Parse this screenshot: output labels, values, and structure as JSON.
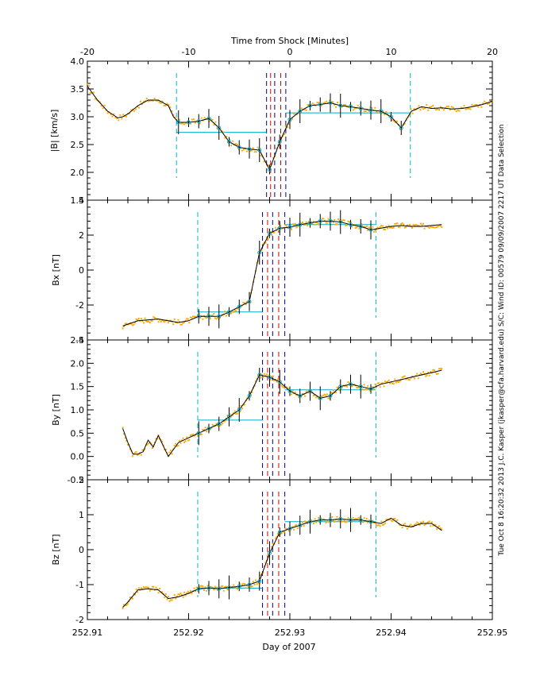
{
  "top_axis": {
    "label": "Time from Shock [Minutes]",
    "range": [
      -20,
      20
    ],
    "ticks": [
      "-20",
      "-10",
      "0",
      "10",
      "20"
    ]
  },
  "bottom_axis": {
    "label": "Day of 2007",
    "range": [
      252.91,
      252.95
    ],
    "ticks": [
      "252.91",
      "252.92",
      "252.93",
      "252.94",
      "252.95"
    ]
  },
  "side_text": "Tue Oct  8 16:20:32 2013    J.C. Kasper (jkasper@cfa.harvard.edu)    S/C: Wind ID: 00579 09/09/2007    2217 UT Data Selection",
  "colors": {
    "data_points": "#ffaa00",
    "fit_line": "#000000",
    "window_lines": "#00bbcc",
    "mean_lines": "#00aacc",
    "shock_lines": "#cc0000",
    "shock_lines_alt": "#000099"
  },
  "chart_data": [
    {
      "type": "line",
      "ylabel": "|B| [km/s]",
      "ylim": [
        1.5,
        4.0
      ],
      "yticks": [
        "1.5",
        "2.0",
        "2.5",
        "3.0",
        "3.5",
        "4.0"
      ],
      "x": [
        252.91,
        252.911,
        252.912,
        252.913,
        252.9135,
        252.914,
        252.915,
        252.916,
        252.917,
        252.918,
        252.9185,
        252.919,
        252.92,
        252.921,
        252.922,
        252.923,
        252.924,
        252.925,
        252.926,
        252.927,
        252.928,
        252.929,
        252.93,
        252.931,
        252.932,
        252.933,
        252.934,
        252.935,
        252.936,
        252.937,
        252.938,
        252.939,
        252.94,
        252.941,
        252.942,
        252.943,
        252.944,
        252.945,
        252.946,
        252.947,
        252.948,
        252.949,
        252.95
      ],
      "values": [
        3.55,
        3.3,
        3.1,
        2.98,
        3.0,
        3.05,
        3.2,
        3.3,
        3.3,
        3.2,
        3.0,
        2.9,
        2.9,
        2.92,
        2.97,
        2.8,
        2.55,
        2.45,
        2.42,
        2.4,
        2.05,
        2.55,
        2.95,
        3.1,
        3.2,
        3.22,
        3.25,
        3.2,
        3.18,
        3.15,
        3.12,
        3.1,
        3.0,
        2.8,
        3.1,
        3.18,
        3.15,
        3.16,
        3.14,
        3.15,
        3.18,
        3.22,
        3.28
      ],
      "window": [
        252.9188,
        252.9419
      ],
      "mean_up": {
        "x": [
          252.9188,
          252.9277
        ],
        "value": 2.72
      },
      "mean_down": {
        "x": [
          252.9296,
          252.9419
        ],
        "value": 3.07
      },
      "shock_lines": [
        252.9277,
        252.9281,
        252.9285,
        252.9291,
        252.9296
      ]
    },
    {
      "type": "line",
      "ylabel": "Bx [nT]",
      "ylim": [
        -4,
        4
      ],
      "yticks": [
        "-4",
        "-2",
        "0",
        "2",
        "4"
      ],
      "x": [
        252.9135,
        252.915,
        252.917,
        252.919,
        252.92,
        252.921,
        252.922,
        252.923,
        252.924,
        252.925,
        252.926,
        252.927,
        252.928,
        252.929,
        252.93,
        252.931,
        252.932,
        252.933,
        252.934,
        252.935,
        252.936,
        252.937,
        252.938,
        252.939,
        252.94,
        252.941,
        252.942,
        252.943,
        252.944,
        252.945
      ],
      "values": [
        -3.2,
        -2.9,
        -2.8,
        -3.0,
        -2.9,
        -2.65,
        -2.65,
        -2.65,
        -2.4,
        -2.1,
        -1.8,
        1.0,
        2.1,
        2.4,
        2.45,
        2.6,
        2.7,
        2.8,
        2.8,
        2.75,
        2.6,
        2.5,
        2.3,
        2.4,
        2.5,
        2.55,
        2.5,
        2.5,
        2.55,
        2.6
      ],
      "window": [
        252.9209,
        252.9385
      ],
      "mean_up": {
        "x": [
          252.9209,
          252.9273
        ],
        "value": -2.4
      },
      "mean_down": {
        "x": [
          252.9295,
          252.9385
        ],
        "value": 2.6
      },
      "shock_lines": [
        252.9273,
        252.9278,
        252.9283,
        252.9289,
        252.9295
      ]
    },
    {
      "type": "line",
      "ylabel": "By [nT]",
      "ylim": [
        -0.5,
        2.5
      ],
      "yticks": [
        "-0.5",
        "0.0",
        "0.5",
        "1.0",
        "1.5",
        "2.0",
        "2.5"
      ],
      "x": [
        252.9135,
        252.914,
        252.9145,
        252.915,
        252.9155,
        252.916,
        252.9165,
        252.917,
        252.918,
        252.919,
        252.92,
        252.921,
        252.922,
        252.923,
        252.924,
        252.925,
        252.926,
        252.927,
        252.928,
        252.929,
        252.93,
        252.931,
        252.932,
        252.933,
        252.934,
        252.935,
        252.936,
        252.937,
        252.938,
        252.939,
        252.94,
        252.941,
        252.942,
        252.943,
        252.944,
        252.945
      ],
      "values": [
        0.6,
        0.3,
        0.05,
        0.05,
        0.1,
        0.35,
        0.2,
        0.45,
        0.0,
        0.3,
        0.4,
        0.5,
        0.6,
        0.7,
        0.85,
        1.0,
        1.3,
        1.75,
        1.7,
        1.6,
        1.4,
        1.3,
        1.4,
        1.25,
        1.3,
        1.5,
        1.55,
        1.5,
        1.45,
        1.55,
        1.6,
        1.65,
        1.7,
        1.75,
        1.8,
        1.85
      ],
      "window": [
        252.9209,
        252.9385
      ],
      "mean_up": {
        "x": [
          252.9209,
          252.9273
        ],
        "value": 0.78
      },
      "mean_down": {
        "x": [
          252.9295,
          252.9385
        ],
        "value": 1.43
      },
      "shock_lines": [
        252.9273,
        252.9278,
        252.9283,
        252.9289,
        252.9295
      ]
    },
    {
      "type": "line",
      "ylabel": "Bz [nT]",
      "ylim": [
        -2,
        2
      ],
      "yticks": [
        "-2",
        "-1",
        "0",
        "1",
        "2"
      ],
      "x": [
        252.9135,
        252.914,
        252.915,
        252.916,
        252.917,
        252.918,
        252.919,
        252.92,
        252.921,
        252.922,
        252.923,
        252.924,
        252.925,
        252.926,
        252.927,
        252.928,
        252.929,
        252.93,
        252.931,
        252.932,
        252.933,
        252.934,
        252.935,
        252.936,
        252.937,
        252.938,
        252.939,
        252.94,
        252.941,
        252.942,
        252.943,
        252.944,
        252.945
      ],
      "values": [
        -1.65,
        -1.5,
        -1.15,
        -1.12,
        -1.15,
        -1.4,
        -1.35,
        -1.25,
        -1.12,
        -1.1,
        -1.12,
        -1.08,
        -1.05,
        -1.0,
        -0.9,
        -0.1,
        0.5,
        0.6,
        0.7,
        0.8,
        0.85,
        0.85,
        0.88,
        0.85,
        0.85,
        0.8,
        0.75,
        0.9,
        0.7,
        0.65,
        0.75,
        0.75,
        0.55
      ],
      "window": [
        252.9209,
        252.9385
      ],
      "mean_up": {
        "x": [
          252.9209,
          252.9273
        ],
        "value": -1.1
      },
      "mean_down": {
        "x": [
          252.9295,
          252.9385
        ],
        "value": 0.8
      },
      "shock_lines": [
        252.9273,
        252.9278,
        252.9283,
        252.9289,
        252.9295
      ]
    }
  ]
}
